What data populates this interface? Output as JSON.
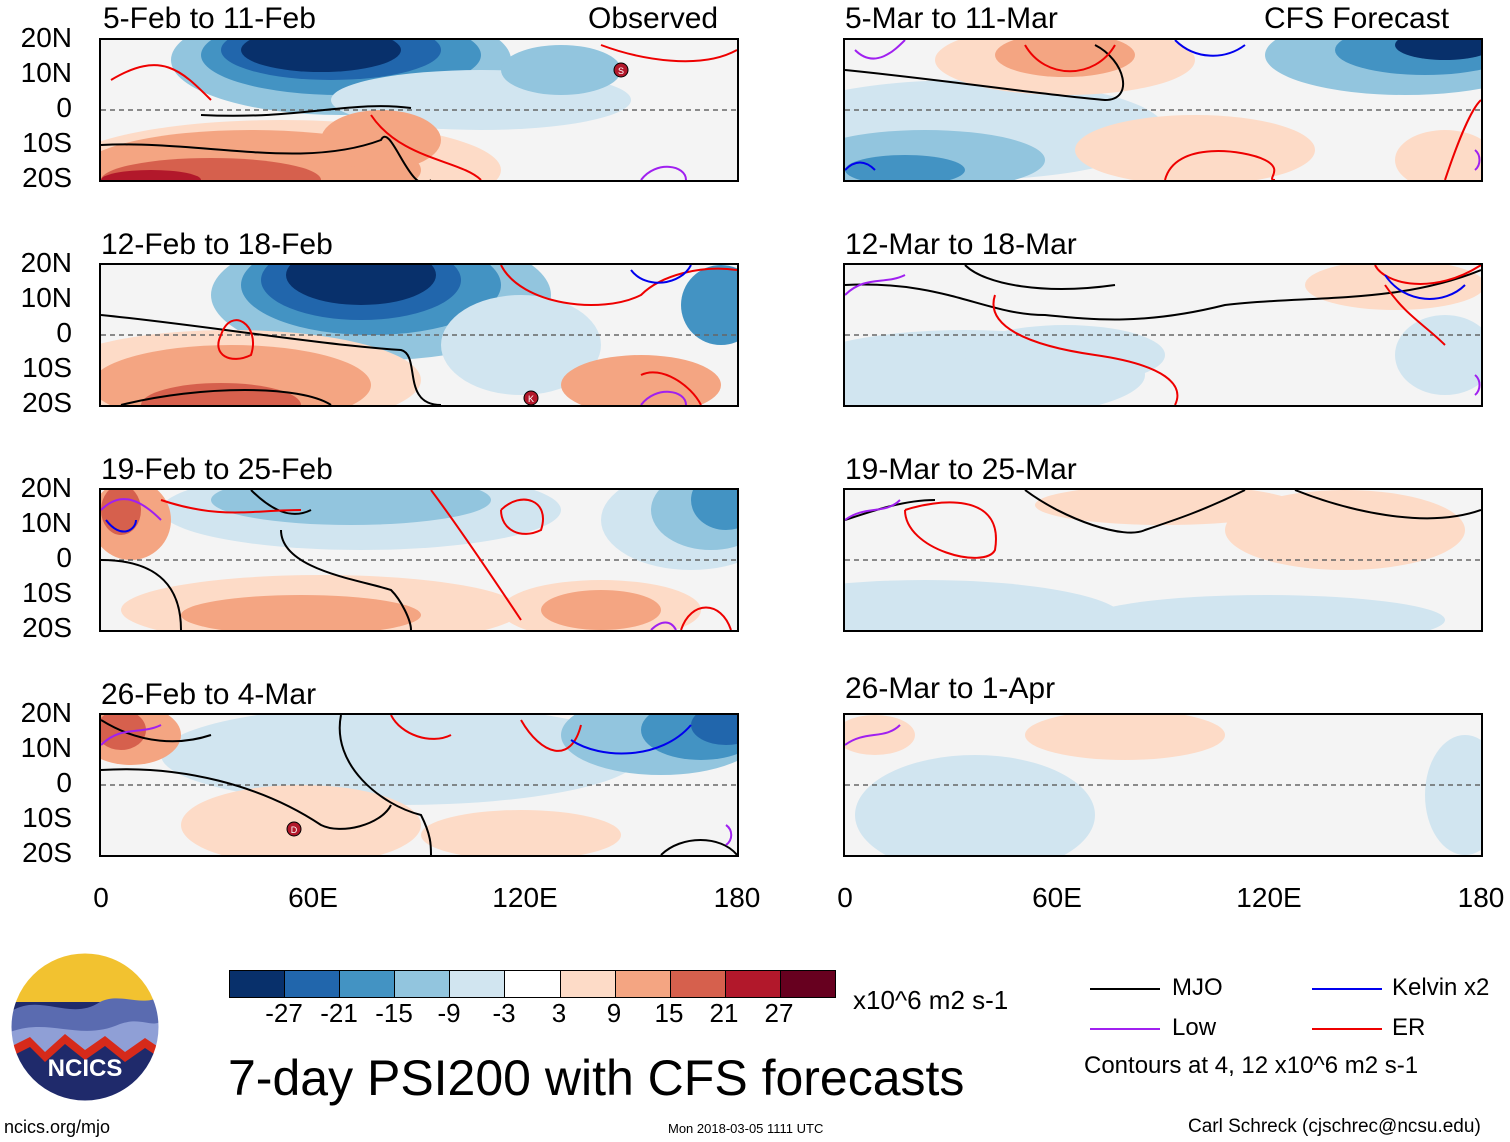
{
  "observed_label": "Observed",
  "forecast_label": "CFS Forecast",
  "lat_labels": [
    "20N",
    "10N",
    "0",
    "10S",
    "20S"
  ],
  "lon_labels": [
    "0",
    "60E",
    "120E",
    "180"
  ],
  "panels": [
    {
      "title": "5-Feb to 11-Feb",
      "column": "observed"
    },
    {
      "title": "12-Feb to 18-Feb",
      "column": "observed"
    },
    {
      "title": "19-Feb to 25-Feb",
      "column": "observed"
    },
    {
      "title": "26-Feb to 4-Mar",
      "column": "observed"
    },
    {
      "title": "5-Mar to 11-Mar",
      "column": "forecast"
    },
    {
      "title": "12-Mar to 18-Mar",
      "column": "forecast"
    },
    {
      "title": "19-Mar to 25-Mar",
      "column": "forecast"
    },
    {
      "title": "26-Mar to 1-Apr",
      "column": "forecast"
    }
  ],
  "colorbar": {
    "colors": [
      "#08306b",
      "#2166ac",
      "#4393c3",
      "#92c5de",
      "#d1e5f0",
      "#ffffff",
      "#fddbc7",
      "#f4a582",
      "#d6604d",
      "#b2182b",
      "#67001f"
    ],
    "labels": [
      "-27",
      "-21",
      "-15",
      "-9",
      "-3",
      "3",
      "9",
      "15",
      "21",
      "27"
    ],
    "units": "x10^6 m2 s-1"
  },
  "legend": {
    "items": [
      {
        "label": "MJO",
        "color": "#000000"
      },
      {
        "label": "Kelvin x2",
        "color": "#0000ee"
      },
      {
        "label": "Low",
        "color": "#a020f0"
      },
      {
        "label": "ER",
        "color": "#ee0000"
      }
    ],
    "contours_note": "Contours at 4, 12 x10^6 m2 s-1"
  },
  "cyclone_markers": [
    "S",
    "K",
    "D"
  ],
  "title": "7-day PSI200 with CFS forecasts",
  "logo_text": "NCICS",
  "footer": {
    "left": "ncics.org/mjo",
    "center": "Mon 2018-03-05 1111 UTC",
    "right": "Carl Schreck (cjschrec@ncsu.edu)"
  }
}
